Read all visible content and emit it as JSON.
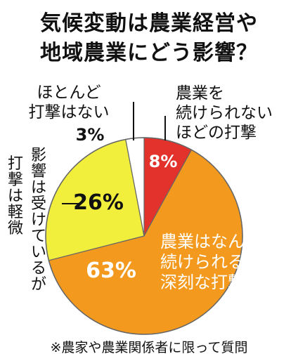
{
  "title_line1": "気候変動は農業経営や",
  "title_line2": "地域農業にどう影響？",
  "footnote": "※農家や農業関係者に限って質問",
  "chart_data": {
    "type": "pie",
    "start": "top",
    "direction": "clockwise",
    "slices": [
      {
        "label_lines": [
          "農業を",
          "続けられない",
          "ほどの打撃"
        ],
        "value": 8,
        "value_label": "8%",
        "color": "#e3312b",
        "label_color": "#111111",
        "value_color": "#ffffff"
      },
      {
        "label_lines": [
          "農業はなんとか",
          "続けられるが",
          "深刻な打撃"
        ],
        "value": 63,
        "value_label": "63%",
        "color": "#f39a1e",
        "label_color": "#ffffff",
        "value_color": "#ffffff"
      },
      {
        "label_lines": [
          "影響は受けているが",
          "打撃は軽微"
        ],
        "value": 26,
        "value_label": "26%",
        "color": "#f1ee3c",
        "label_color": "#111111",
        "value_color": "#111111"
      },
      {
        "label_lines": [
          "ほとんど",
          "打撃はない"
        ],
        "value": 3,
        "value_label": "3%",
        "color": "#ffffff",
        "label_color": "#111111",
        "value_color": "#111111"
      }
    ]
  }
}
